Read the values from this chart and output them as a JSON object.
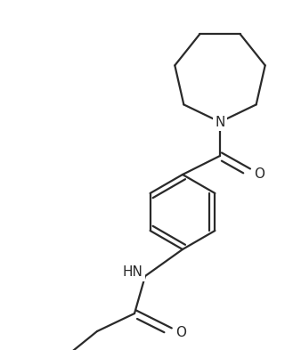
{
  "background_color": "#ffffff",
  "bond_color": "#2a2a2a",
  "figure_width": 3.29,
  "figure_height": 3.93,
  "dpi": 100,
  "lw": 1.6,
  "label_N": "N",
  "label_NH": "HN",
  "label_O1": "O",
  "label_O2": "O",
  "font_size": 11
}
